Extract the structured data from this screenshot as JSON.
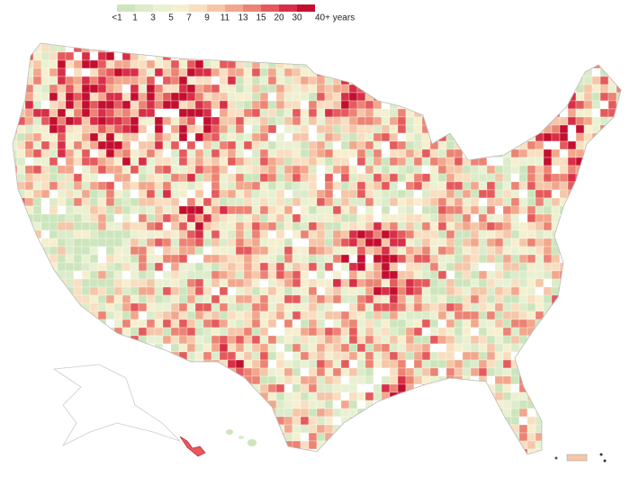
{
  "legend": {
    "labels": [
      "<1",
      "1",
      "3",
      "5",
      "7",
      "9",
      "11",
      "13",
      "15",
      "20",
      "30",
      "40+ years"
    ],
    "colors": [
      "#cde5bd",
      "#dcebc9",
      "#eaf1d2",
      "#f6efcf",
      "#f9dec0",
      "#f6c6a8",
      "#f2a78c",
      "#ec8373",
      "#e55a5c",
      "#d92e48",
      "#c40e2f"
    ]
  }
}
